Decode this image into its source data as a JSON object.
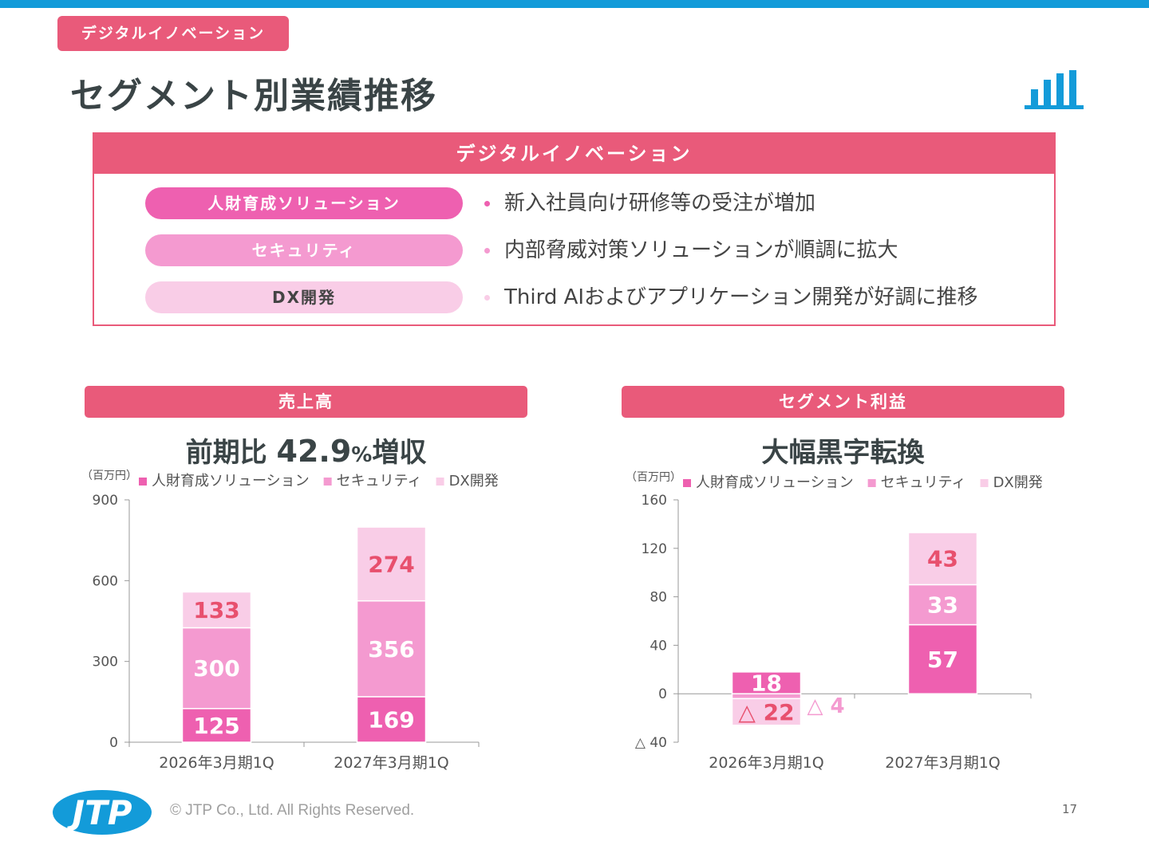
{
  "header": {
    "tag": "デジタルイノベーション",
    "title": "セグメント別業績推移"
  },
  "segment_box": {
    "title": "デジタルイノベーション",
    "rows": [
      {
        "name": "人財育成ソリューション",
        "text": "新入社員向け研修等の受注が増加",
        "pill_color": "#ee60b0",
        "text_color": "#ffffff"
      },
      {
        "name": "セキュリティ",
        "text": "内部脅威対策ソリューションが順調に拡大",
        "pill_color": "#f49ad0",
        "text_color": "#ffffff"
      },
      {
        "name": "DX開発",
        "text": "Third AIおよびアプリケーション開発が好調に推移",
        "pill_color": "#f9cde7",
        "text_color": "#444444"
      }
    ]
  },
  "sales": {
    "section_title": "売上高",
    "headline_prefix": "前期比 ",
    "headline_number": "42.9",
    "headline_pct": "%",
    "headline_suffix": "増収"
  },
  "profit": {
    "section_title": "セグメント利益",
    "headline": "大幅黒字転換"
  },
  "colors": {
    "accent": "#e95a7a",
    "hr": "#ee60b0",
    "security": "#f49ad0",
    "dx": "#f9cde7",
    "label_red": "#e8506e",
    "top_bar": "#139bd9"
  },
  "chart_data": [
    {
      "type": "bar",
      "stacked": true,
      "title": "売上高",
      "unit": "（百万円）",
      "categories": [
        "2026年3月期1Q",
        "2027年3月期1Q"
      ],
      "series": [
        {
          "name": "人財育成ソリューション",
          "values": [
            125,
            169
          ],
          "labels": [
            "125",
            "169"
          ]
        },
        {
          "name": "セキュリティ",
          "values": [
            300,
            356
          ],
          "labels": [
            "300",
            "356"
          ]
        },
        {
          "name": "DX開発",
          "values": [
            133,
            274
          ],
          "labels": [
            "133",
            "274"
          ]
        }
      ],
      "ylim": [
        0,
        900
      ],
      "yticks": [
        0,
        300,
        600,
        900
      ],
      "ytick_labels": [
        "0",
        "300",
        "600",
        "900"
      ],
      "legend": "top"
    },
    {
      "type": "bar",
      "stacked": true,
      "title": "セグメント利益",
      "unit": "（百万円）",
      "categories": [
        "2026年3月期1Q",
        "2027年3月期1Q"
      ],
      "series": [
        {
          "name": "人財育成ソリューション",
          "values": [
            18,
            57
          ],
          "labels": [
            "18",
            "57"
          ]
        },
        {
          "name": "セキュリティ",
          "values": [
            -4,
            33
          ],
          "labels": [
            "△ 4",
            "33"
          ]
        },
        {
          "name": "DX開発",
          "values": [
            -22,
            43
          ],
          "labels": [
            "△ 22",
            "43"
          ]
        }
      ],
      "ylim": [
        -40,
        160
      ],
      "yticks": [
        -40,
        0,
        40,
        80,
        120,
        160
      ],
      "ytick_labels": [
        "△ 40",
        "0",
        "40",
        "80",
        "120",
        "160"
      ],
      "legend": "top"
    }
  ],
  "footer": {
    "copyright": "© JTP Co., Ltd. All Rights Reserved.",
    "page_number": "17",
    "logo_text": "JTP"
  }
}
